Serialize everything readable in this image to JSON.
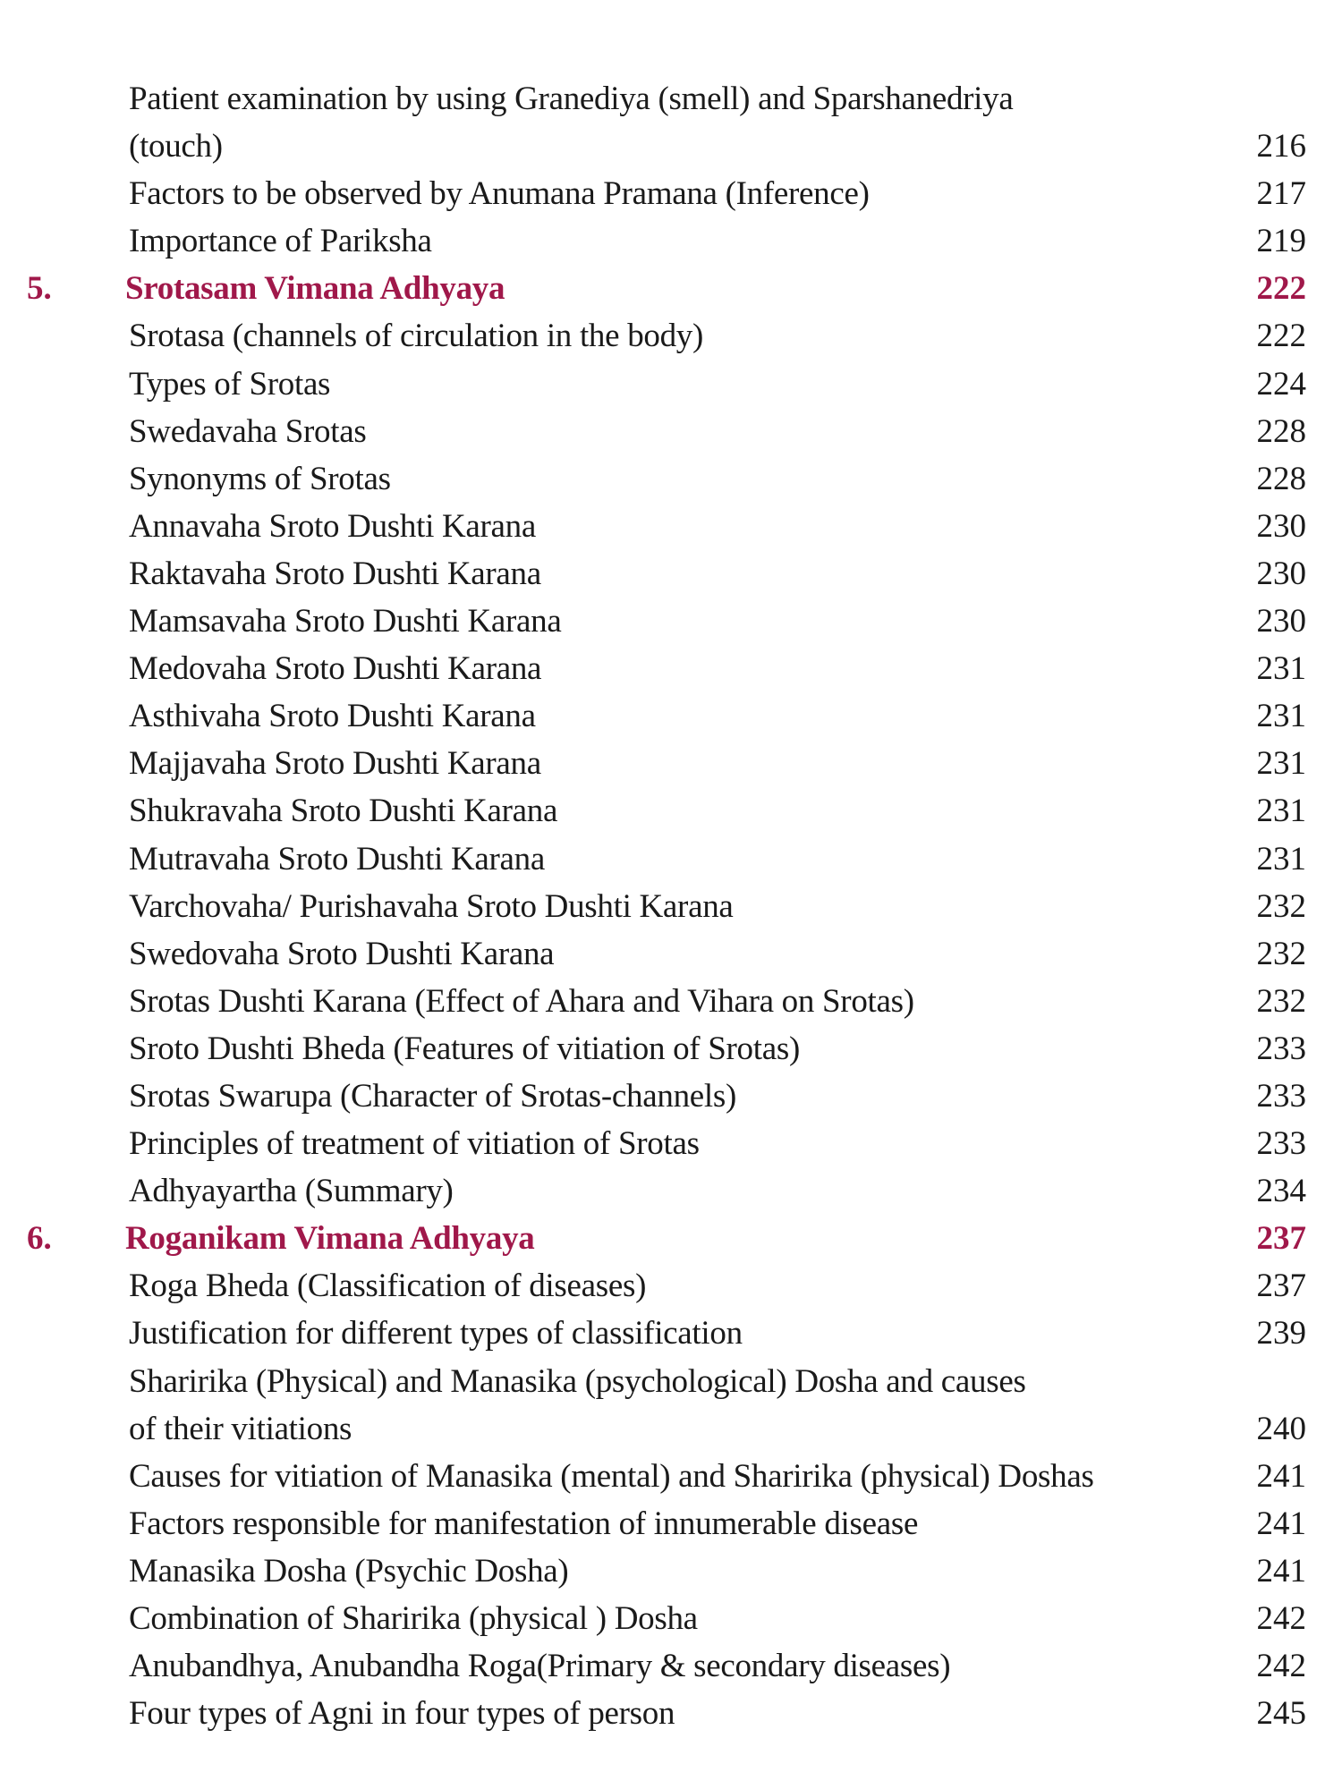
{
  "toc": {
    "rows": [
      {
        "text": "Patient examination by using Granediya (smell) and Sparshanedriya",
        "page": ""
      },
      {
        "text": "(touch)",
        "page": "216"
      },
      {
        "text": "Factors to be observed by Anumana Pramana (Inference)",
        "page": "217"
      },
      {
        "text": "Importance of Pariksha",
        "page": "219"
      },
      {
        "num": "5.",
        "text": "Srotasam Vimana Adhyaya",
        "page": "222",
        "chapter": true
      },
      {
        "text": "Srotasa (channels of  circulation in the body)",
        "page": "222"
      },
      {
        "text": "Types of Srotas",
        "page": "224"
      },
      {
        "text": "Swedavaha Srotas",
        "page": "228"
      },
      {
        "text": "Synonyms of Srotas",
        "page": "228"
      },
      {
        "text": "Annavaha Sroto Dushti Karana",
        "page": "230"
      },
      {
        "text": "Raktavaha Sroto Dushti Karana",
        "page": "230"
      },
      {
        "text": "Mamsavaha Sroto Dushti Karana",
        "page": "230"
      },
      {
        "text": "Medovaha Sroto Dushti Karana",
        "page": "231"
      },
      {
        "text": "Asthivaha Sroto Dushti Karana",
        "page": "231"
      },
      {
        "text": "Majjavaha Sroto Dushti Karana",
        "page": "231"
      },
      {
        "text": "Shukravaha Sroto Dushti Karana",
        "page": "231"
      },
      {
        "text": "Mutravaha Sroto Dushti Karana",
        "page": "231"
      },
      {
        "text": "Varchovaha/ Purishavaha Sroto Dushti Karana",
        "page": "232"
      },
      {
        "text": "Swedovaha Sroto Dushti Karana",
        "page": "232"
      },
      {
        "text": "Srotas Dushti Karana (Effect of Ahara and Vihara on Srotas)",
        "page": "232"
      },
      {
        "text": "Sroto Dushti Bheda (Features of vitiation of Srotas)",
        "page": "233"
      },
      {
        "text": "Srotas Swarupa (Character of Srotas-channels)",
        "page": "233"
      },
      {
        "text": "Principles of treatment of vitiation of Srotas",
        "page": "233"
      },
      {
        "text": "Adhyayartha (Summary)",
        "page": "234"
      },
      {
        "num": "6.",
        "text": "Roganikam Vimana Adhyaya",
        "page": "237",
        "chapter": true
      },
      {
        "text": "Roga Bheda (Classification of diseases)",
        "page": "237"
      },
      {
        "text": "Justification for different types of classification",
        "page": "239"
      },
      {
        "text": "Sharirika (Physical) and Manasika (psychological) Dosha and causes",
        "page": ""
      },
      {
        "text": "of their vitiations",
        "page": "240"
      },
      {
        "text": "Causes for vitiation of Manasika (mental) and Sharirika (physical) Doshas",
        "page": "241"
      },
      {
        "text": "Factors responsible for manifestation of innumerable disease",
        "page": "241"
      },
      {
        "text": "Manasika Dosha (Psychic Dosha)",
        "page": "241"
      },
      {
        "text": "Combination of Sharirika (physical ) Dosha",
        "page": "242"
      },
      {
        "text": "Anubandhya, Anubandha Roga(Primary & secondary diseases)",
        "page": "242"
      },
      {
        "text": "Four types of Agni in four types of person",
        "page": "245"
      }
    ],
    "colors": {
      "chapter": "#a0184a",
      "text": "#1a1a1a"
    }
  }
}
